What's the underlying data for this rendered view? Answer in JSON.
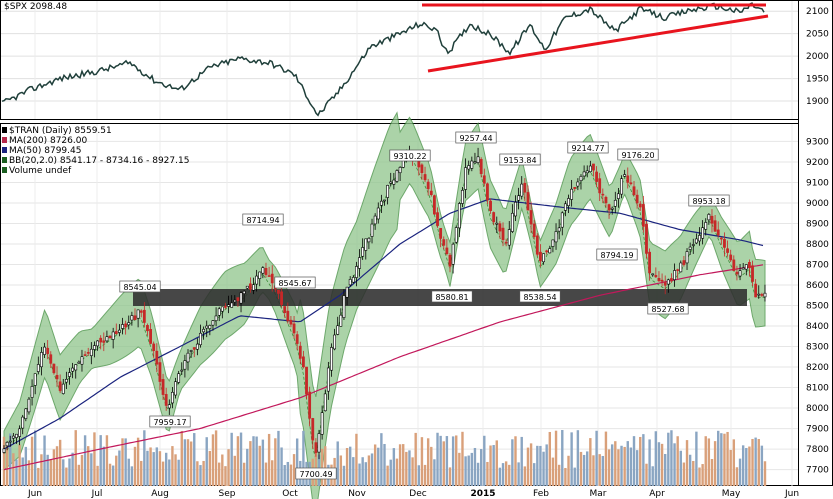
{
  "top_panel": {
    "legend": "$SPX 2098.48",
    "y_ticks": [
      "2100",
      "2050",
      "2000",
      "1950",
      "1900"
    ]
  },
  "main_panel": {
    "legend": [
      {
        "text": "$TRAN (Daily) 8559.51",
        "color": "#000000"
      },
      {
        "text": "MA(200) 8726.00",
        "color": "#b5284a"
      },
      {
        "text": "MA(50) 8799.45",
        "color": "#1a237e"
      },
      {
        "text": "BB(20,2.0) 8541.17 - 8734.16 - 8927.15",
        "color": "#1b5e20"
      },
      {
        "text": "Volume undef",
        "color": "#1b5e20"
      }
    ],
    "y_ticks": [
      "9300",
      "9200",
      "9100",
      "9000",
      "8900",
      "8800",
      "8700",
      "8600",
      "8500",
      "8400",
      "8300",
      "8200",
      "8100",
      "8000",
      "7900",
      "7800",
      "7700"
    ]
  },
  "x_axis": {
    "months": [
      "Jun",
      "Jul",
      "Aug",
      "Sep",
      "Oct",
      "Nov",
      "Dec",
      "2015",
      "Feb",
      "Mar",
      "Apr",
      "May",
      "Jun"
    ]
  },
  "annotations": [
    "9310.22",
    "9257.44",
    "9153.84",
    "9214.77",
    "9176.20",
    "8953.18",
    "8794.19",
    "8714.94",
    "8545.67",
    "8545.04",
    "8580.81",
    "8538.54",
    "8527.68",
    "7959.17",
    "7700.49"
  ],
  "colors": {
    "spx_line": "#1f3f3a",
    "trend_line": "#e8141e",
    "bb_fill": "#8fc58c",
    "bb_line": "#3d8b3a",
    "ma200": "#c2185b",
    "ma50": "#1a237e",
    "up_candle": "#000000",
    "down_candle": "#c62828",
    "support_band": "#2e2e2e",
    "volume_up": "#8aa5c2",
    "volume_down": "#d9a07a"
  },
  "chart_data": [
    {
      "type": "line",
      "title": "$SPX",
      "y_range": [
        1880,
        2120
      ],
      "x": [
        "Jun",
        "Jul",
        "Aug",
        "Sep",
        "Oct",
        "Nov",
        "Dec",
        "2015",
        "Feb",
        "Mar",
        "Apr",
        "May"
      ],
      "series": [
        {
          "name": "$SPX",
          "values": [
            1925,
            1960,
            1930,
            1995,
            1865,
            2040,
            2070,
            2010,
            2095,
            2105,
            2090,
            2112
          ]
        }
      ]
    },
    {
      "type": "line",
      "title": "$TRAN (Daily)",
      "y_range": [
        7650,
        9350
      ],
      "x": [
        "Jun",
        "Jul",
        "Aug",
        "Sep",
        "Oct",
        "Nov",
        "Dec",
        "2015",
        "Feb",
        "Mar",
        "Apr",
        "May"
      ],
      "series": [
        {
          "name": "$TRAN",
          "values": [
            7800,
            8400,
            8000,
            8650,
            7750,
            8900,
            9250,
            8700,
            9100,
            9150,
            8650,
            8560
          ]
        },
        {
          "name": "MA(200)",
          "values": [
            7700,
            7750,
            7900,
            8000,
            8150,
            8250,
            8350,
            8420,
            8480,
            8550,
            8600,
            8726
          ]
        },
        {
          "name": "MA(50)",
          "values": [
            7850,
            8100,
            8200,
            8500,
            8450,
            8750,
            9000,
            8920,
            8950,
            8900,
            8850,
            8800
          ]
        }
      ],
      "support_band": [
        8510,
        8580
      ],
      "peaks": [
        {
          "label": "9310.22",
          "x": "Dec",
          "y": 9310.22
        },
        {
          "label": "9257.44",
          "x": "2015",
          "y": 9257.44
        },
        {
          "label": "7700.49",
          "x": "Oct",
          "y": 7700.49
        }
      ]
    }
  ]
}
